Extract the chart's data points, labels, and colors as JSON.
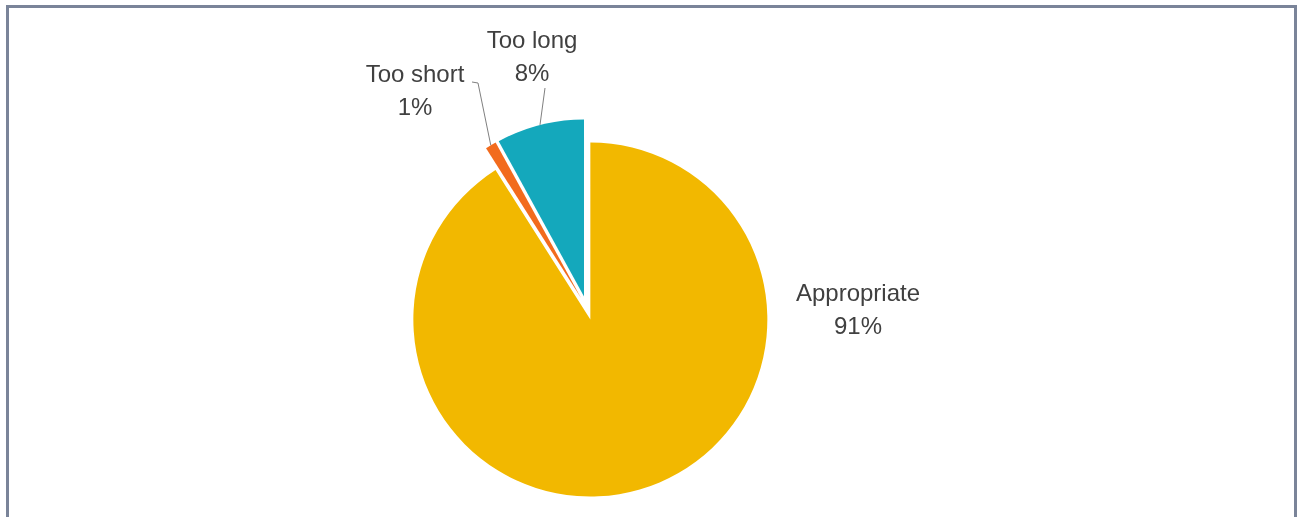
{
  "chart_data": {
    "type": "pie",
    "categories": [
      "Appropriate",
      "Too short",
      "Too long"
    ],
    "values": [
      91,
      1,
      8
    ],
    "colors": [
      "#f2b800",
      "#f26b1d",
      "#14a8bc"
    ],
    "value_labels": [
      "91%",
      "1%",
      "8%"
    ]
  }
}
